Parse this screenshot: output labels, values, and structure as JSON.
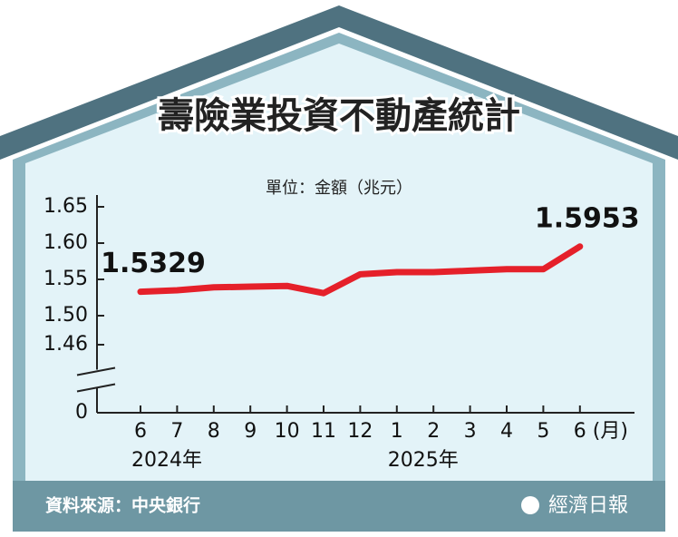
{
  "title": "壽險業投資不動產統計",
  "source": "資料來源：中央銀行",
  "publisher": "經濟日報",
  "chart_data": {
    "type": "line",
    "unit_label": "單位：金額（兆元）",
    "x_unit": "(月)",
    "categories": [
      "6",
      "7",
      "8",
      "9",
      "10",
      "11",
      "12",
      "1",
      "2",
      "3",
      "4",
      "5",
      "6"
    ],
    "x_groups": [
      {
        "label": "2024年",
        "start": 0
      },
      {
        "label": "2025年",
        "start": 7
      }
    ],
    "series": [
      {
        "color": "#e5202a",
        "values": [
          1.5329,
          1.535,
          1.539,
          1.54,
          1.541,
          1.531,
          1.557,
          1.56,
          1.56,
          1.562,
          1.564,
          1.564,
          1.5953
        ],
        "value_labels": [
          "1.5329",
          null,
          null,
          null,
          null,
          null,
          null,
          null,
          null,
          null,
          null,
          null,
          "1.5953"
        ]
      }
    ],
    "ylim": [
      1.44,
      1.65
    ],
    "yticks": [
      0,
      {
        "value": 1.46,
        "label": "1.46"
      },
      {
        "value": 1.5,
        "label": "1.50"
      },
      1.55,
      {
        "value": 1.6,
        "label": "1.60"
      },
      1.65
    ],
    "axis_break": true
  }
}
